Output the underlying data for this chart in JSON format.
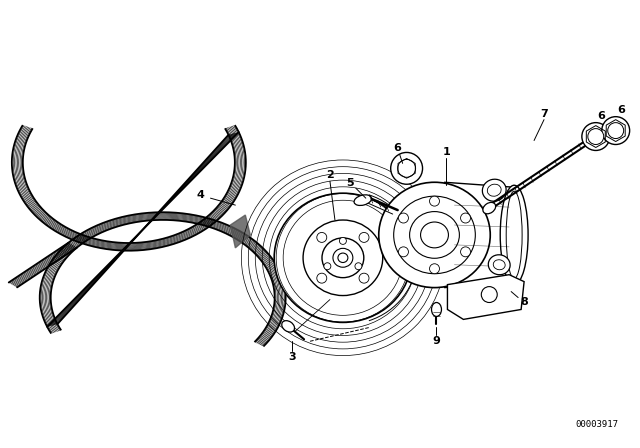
{
  "background_color": "#ffffff",
  "fig_width": 6.4,
  "fig_height": 4.48,
  "dpi": 100,
  "diagram_code_text": "00003917",
  "lc": "#000000",
  "label_fs": 8,
  "code_fs": 6.5
}
